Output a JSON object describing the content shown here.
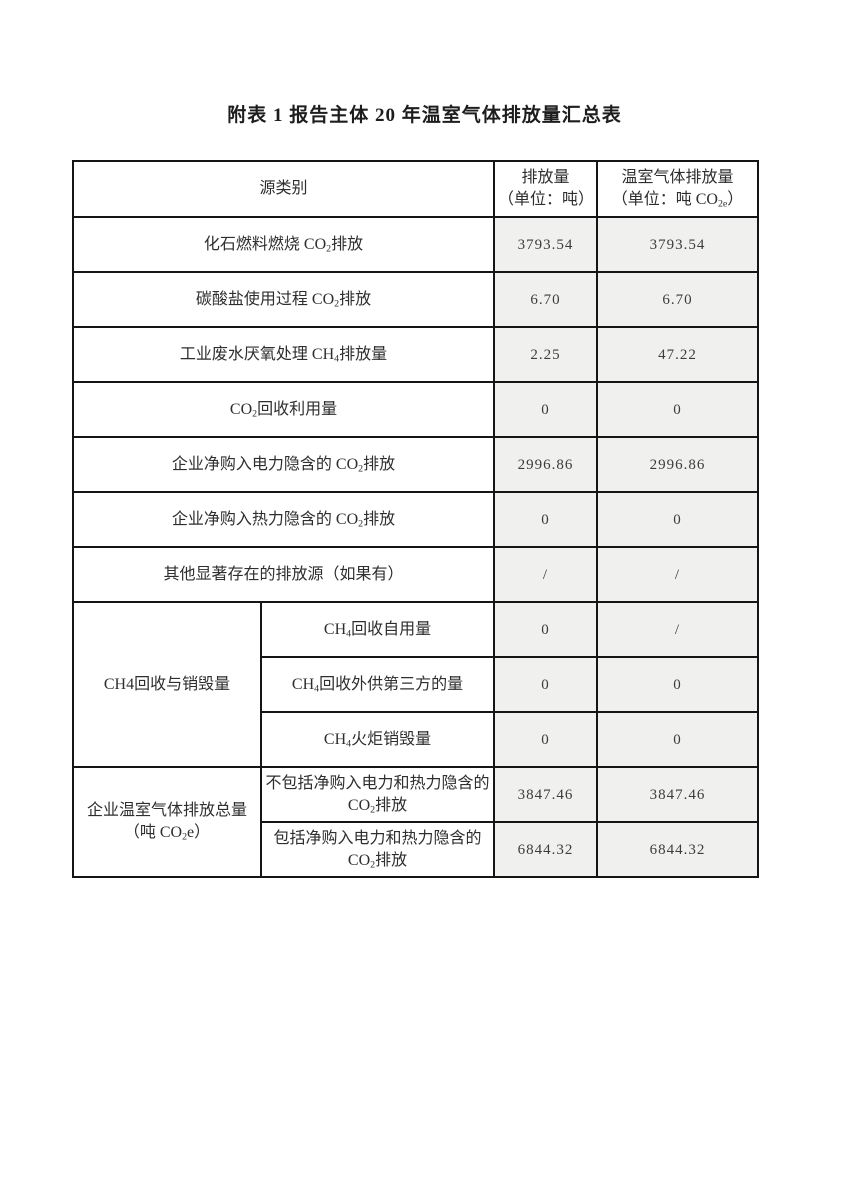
{
  "page": {
    "title": "附表 1 报告主体 20 年温室气体排放量汇总表"
  },
  "colors": {
    "value_cell_shade": "#f0f0ee",
    "table_border": "#151515",
    "text": "#2e2e2e",
    "page_background": "#ffffff"
  },
  "table": {
    "headers": {
      "source_category": "源类别",
      "emission": "排放量\n（单位：吨）",
      "ghg_emission": "温室气体排放量\n（单位：吨 CO_{2e}）"
    },
    "rows": [
      {
        "label": "化石燃料燃烧 CO_{2}排放",
        "emission": "3793.54",
        "ghg": "3793.54"
      },
      {
        "label": "碳酸盐使用过程 CO_{2}排放",
        "emission": "6.70",
        "ghg": "6.70"
      },
      {
        "label": "工业废水厌氧处理 CH_{4}排放量",
        "emission": "2.25",
        "ghg": "47.22"
      },
      {
        "label": "CO_{2}回收利用量",
        "emission": "0",
        "ghg": "0"
      },
      {
        "label": "企业净购入电力隐含的 CO_{2}排放",
        "emission": "2996.86",
        "ghg": "2996.86"
      },
      {
        "label": "企业净购入热力隐含的 CO_{2}排放",
        "emission": "0",
        "ghg": "0"
      },
      {
        "label": "其他显著存在的排放源（如果有）",
        "emission": "/",
        "ghg": "/"
      }
    ],
    "group_ch4": {
      "label": "CH4回收与销毁量",
      "rows": [
        {
          "label": "CH_{4}回收自用量",
          "emission": "0",
          "ghg": "/"
        },
        {
          "label": "CH_{4}回收外供第三方的量",
          "emission": "0",
          "ghg": "0"
        },
        {
          "label": "CH_{4}火炬销毁量",
          "emission": "0",
          "ghg": "0"
        }
      ]
    },
    "group_total": {
      "label": "企业温室气体排放总量\n（吨 CO_{2}e）",
      "rows": [
        {
          "label": "不包括净购入电力和热力隐含的\nCO_{2}排放",
          "emission": "3847.46",
          "ghg": "3847.46"
        },
        {
          "label": "包括净购入电力和热力隐含的\nCO_{2}排放",
          "emission": "6844.32",
          "ghg": "6844.32"
        }
      ]
    }
  }
}
